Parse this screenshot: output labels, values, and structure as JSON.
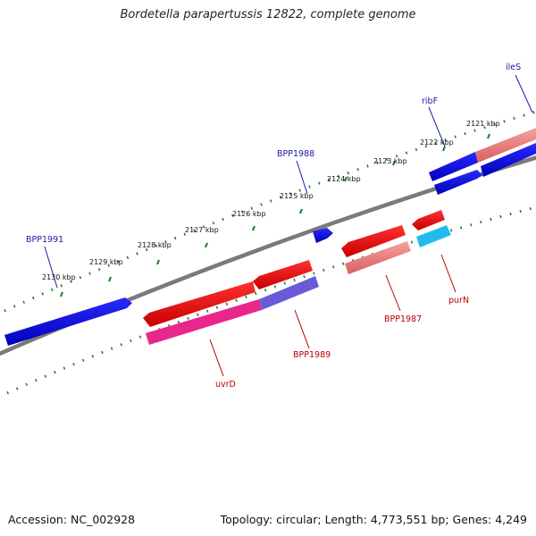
{
  "title": "Bordetella parapertussis 12822, complete genome",
  "footer": {
    "accession": "Accession: NC_002928",
    "stats": "Topology: circular; Length: 4,773,551 bp; Genes: 4,249"
  },
  "scale_labels": [
    "2121 kbp",
    "2122 kbp",
    "2123 kbp",
    "2124 kbp",
    "2125 kbp",
    "2126 kbp",
    "2127 kbp",
    "2128 kbp",
    "2129 kbp",
    "2130 kbp"
  ],
  "genes": {
    "ileS": "ileS",
    "ribF": "ribF",
    "BPP1988": "BPP1988",
    "BPP1991": "BPP1991",
    "purN": "purN",
    "BPP1987": "BPP1987",
    "BPP1989": "BPP1989",
    "uvrD": "uvrD"
  },
  "colors": {
    "forward_gene": "#0000e0",
    "reverse_gene": "#ee1111",
    "reverse_cds_pink": "#f08080",
    "cds_magenta": "#e8268c",
    "cds_purple": "#6a5ad8",
    "cds_cyan": "#22bbee",
    "backbone": "#7a7a7a",
    "tick": "#1a7a1a"
  }
}
